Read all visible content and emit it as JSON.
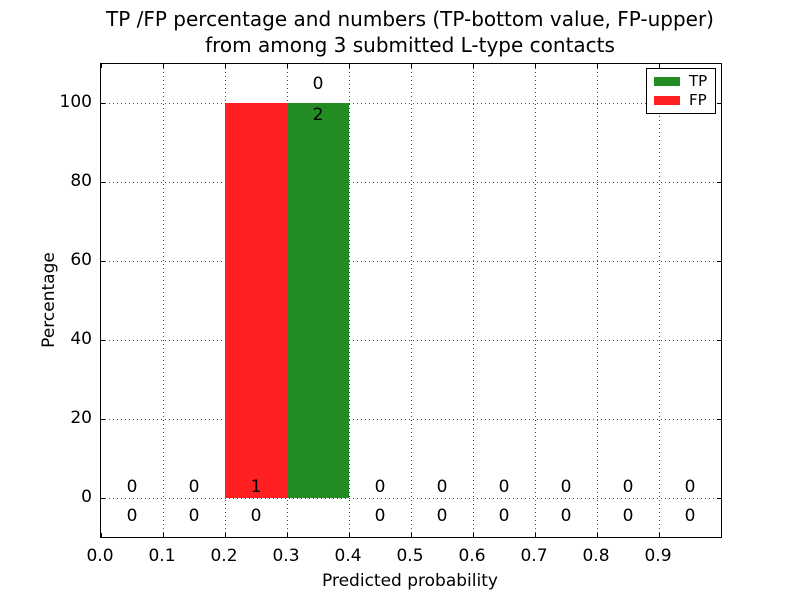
{
  "title": {
    "line1": "TP /FP percentage and numbers (TP-bottom value, FP-upper)",
    "line2": "from among 3 submitted L-type contacts"
  },
  "axes": {
    "xlabel": "Predicted probability",
    "ylabel": "Percentage",
    "xtick_labels": [
      "0.0",
      "0.1",
      "0.2",
      "0.3",
      "0.4",
      "0.5",
      "0.6",
      "0.7",
      "0.8",
      "0.9"
    ],
    "ytick_labels": [
      "0",
      "20",
      "40",
      "60",
      "80",
      "100"
    ]
  },
  "legend": {
    "items": [
      {
        "label": "TP",
        "color": "#228b22"
      },
      {
        "label": "FP",
        "color": "#ff2121"
      }
    ]
  },
  "colors": {
    "tp": "#228b22",
    "fp": "#ff2121",
    "grid": "#4a4a4a",
    "axis": "#000000",
    "background": "#ffffff"
  },
  "chart_data": {
    "type": "bar",
    "title": "TP /FP percentage and numbers (TP-bottom value, FP-upper) from among 3 submitted L-type contacts",
    "xlabel": "Predicted probability",
    "ylabel": "Percentage",
    "xlim": [
      0.0,
      1.0
    ],
    "ylim": [
      -10,
      110
    ],
    "xticks": [
      0.0,
      0.1,
      0.2,
      0.3,
      0.4,
      0.5,
      0.6,
      0.7,
      0.8,
      0.9
    ],
    "yticks": [
      0,
      20,
      40,
      60,
      80,
      100
    ],
    "grid": true,
    "legend_position": "upper right",
    "bin_width": 0.1,
    "bin_centers": [
      0.05,
      0.15,
      0.25,
      0.35,
      0.45,
      0.55,
      0.65,
      0.75,
      0.85,
      0.95
    ],
    "series": [
      {
        "name": "TP",
        "color": "#228b22",
        "percent": [
          0,
          0,
          0,
          100,
          0,
          0,
          0,
          0,
          0,
          0
        ],
        "counts": [
          0,
          0,
          0,
          2,
          0,
          0,
          0,
          0,
          0,
          0
        ]
      },
      {
        "name": "FP",
        "color": "#ff2121",
        "percent": [
          0,
          0,
          100,
          0,
          0,
          0,
          0,
          0,
          0,
          0
        ],
        "counts": [
          0,
          0,
          1,
          0,
          0,
          0,
          0,
          0,
          0,
          0
        ]
      }
    ],
    "annotations": [
      {
        "bin_center": 0.05,
        "anchor_percent": 0,
        "upper": "0",
        "lower": "0"
      },
      {
        "bin_center": 0.15,
        "anchor_percent": 0,
        "upper": "0",
        "lower": "0"
      },
      {
        "bin_center": 0.25,
        "anchor_percent": 0,
        "upper": "1",
        "lower": "0"
      },
      {
        "bin_center": 0.35,
        "anchor_percent": 100,
        "upper": "0",
        "lower": "2"
      },
      {
        "bin_center": 0.45,
        "anchor_percent": 0,
        "upper": "0",
        "lower": "0"
      },
      {
        "bin_center": 0.55,
        "anchor_percent": 0,
        "upper": "0",
        "lower": "0"
      },
      {
        "bin_center": 0.65,
        "anchor_percent": 0,
        "upper": "0",
        "lower": "0"
      },
      {
        "bin_center": 0.75,
        "anchor_percent": 0,
        "upper": "0",
        "lower": "0"
      },
      {
        "bin_center": 0.85,
        "anchor_percent": 0,
        "upper": "0",
        "lower": "0"
      },
      {
        "bin_center": 0.95,
        "anchor_percent": 0,
        "upper": "0",
        "lower": "0"
      }
    ]
  }
}
